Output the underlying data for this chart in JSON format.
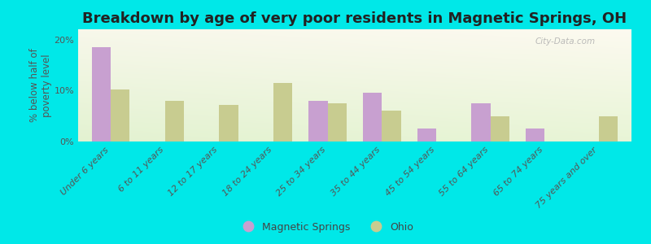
{
  "title": "Breakdown by age of very poor residents in Magnetic Springs, OH",
  "ylabel": "% below half of\npoverty level",
  "categories": [
    "Under 6 years",
    "6 to 11 years",
    "12 to 17 years",
    "18 to 24 years",
    "25 to 34 years",
    "35 to 44 years",
    "45 to 54 years",
    "55 to 64 years",
    "65 to 74 years",
    "75 years and over"
  ],
  "magnetic_springs": [
    18.5,
    0,
    0,
    0,
    8.0,
    9.5,
    2.5,
    7.5,
    2.5,
    0
  ],
  "ohio": [
    10.2,
    8.0,
    7.2,
    11.5,
    7.5,
    6.0,
    0,
    5.0,
    0,
    5.0
  ],
  "bar_color_ms": "#c8a0d0",
  "bar_color_oh": "#c8cc90",
  "background_outer": "#00e8e8",
  "ylim": [
    0,
    22
  ],
  "yticks": [
    0,
    10,
    20
  ],
  "ytick_labels": [
    "0%",
    "10%",
    "20%"
  ],
  "bar_width": 0.35,
  "title_fontsize": 13,
  "axis_label_fontsize": 8.5,
  "tick_fontsize": 8,
  "legend_label_ms": "Magnetic Springs",
  "legend_label_oh": "Ohio",
  "watermark": "City-Data.com"
}
